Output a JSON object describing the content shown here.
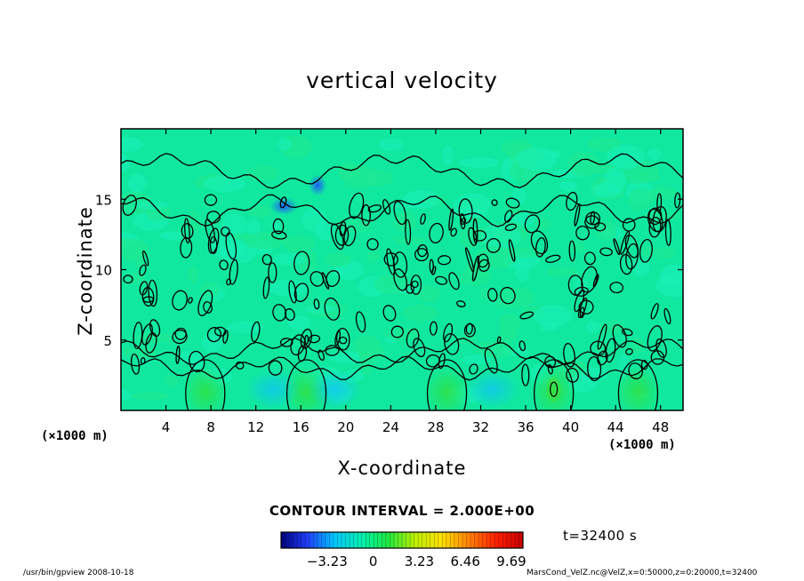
{
  "chart_data": {
    "type": "heatmap",
    "title": "vertical velocity",
    "xlabel": "X-coordinate",
    "ylabel": "Z-coordinate",
    "x_unit": "(×1000 m)",
    "y_unit": "(×1000 m)",
    "xlim": [
      0,
      50
    ],
    "ylim": [
      0,
      20
    ],
    "x_ticks": [
      4,
      8,
      12,
      16,
      20,
      24,
      28,
      32,
      36,
      40,
      44,
      48
    ],
    "y_ticks": [
      5,
      10,
      15
    ],
    "contour_interval": "CONTOUR INTERVAL = 2.000E+00",
    "colorbar": {
      "ticks": [
        "−3.23",
        "0",
        "3.23",
        "6.46",
        "9.69"
      ],
      "tick_values": [
        -3.23,
        0,
        3.23,
        6.46,
        9.69
      ],
      "range": [
        -6.46,
        10.5
      ],
      "colors": [
        "#00007a",
        "#2040ff",
        "#00c8ff",
        "#00f0b0",
        "#20e840",
        "#c0f000",
        "#ffe000",
        "#ff8000",
        "#ff2000",
        "#c80000"
      ]
    },
    "time": "t=32400 s",
    "footer_left": "/usr/bin/gpview  2008-10-18",
    "footer_right": "MarsCond_VelZ.nc@VelZ,x=0:50000,z=0:20000,t=32400",
    "updraft_columns_x": [
      7.5,
      16.5,
      29,
      38.5,
      46
    ],
    "downdraft_regions_x": [
      13.5,
      19,
      33
    ]
  }
}
